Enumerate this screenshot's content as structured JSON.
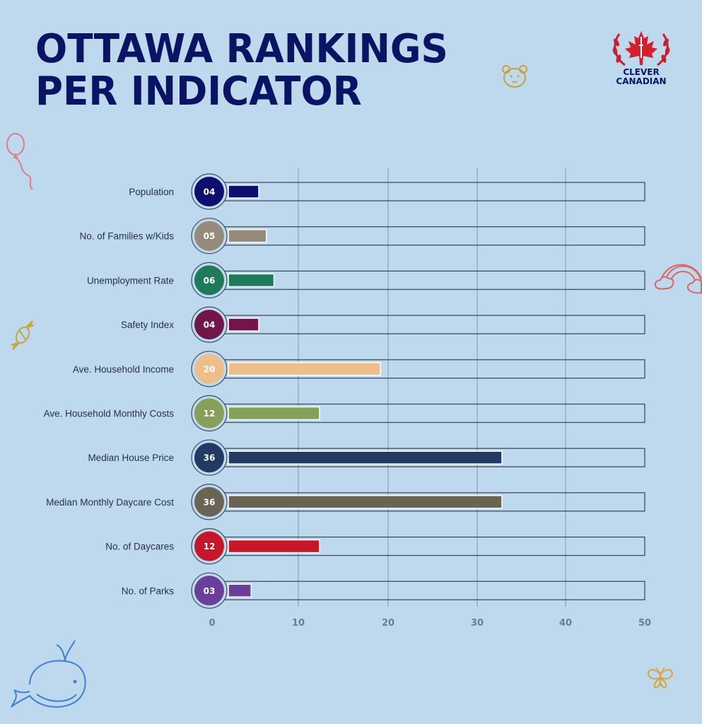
{
  "title": {
    "line1": "OTTAWA RANKINGS",
    "line2": "PER INDICATOR"
  },
  "logo": {
    "line1": "CLEVER",
    "line2": "CANADIAN",
    "color": "#c8202e"
  },
  "chart_data": {
    "type": "bar",
    "orientation": "horizontal",
    "categories": [
      "Population",
      "No. of Families w/Kids",
      "Unemployment Rate",
      "Safety Index",
      "Ave. Household Income",
      "Ave. Household Monthly Costs",
      "Median House Price",
      "Median Monthly Daycare Cost",
      "No. of Daycares",
      "No. of Parks"
    ],
    "values": [
      4,
      5,
      6,
      4,
      20,
      12,
      36,
      36,
      12,
      3
    ],
    "value_labels": [
      "04",
      "05",
      "06",
      "04",
      "20",
      "12",
      "36",
      "36",
      "12",
      "03"
    ],
    "colors": [
      "#0d0f6e",
      "#958a7b",
      "#1f7a5a",
      "#72154a",
      "#eebe8a",
      "#86a05a",
      "#233a62",
      "#6a6455",
      "#c6172a",
      "#6a3e9a"
    ],
    "xlim": [
      0,
      50
    ],
    "xticks": [
      "0",
      "10",
      "20",
      "30",
      "40",
      "50"
    ],
    "grid": true
  }
}
